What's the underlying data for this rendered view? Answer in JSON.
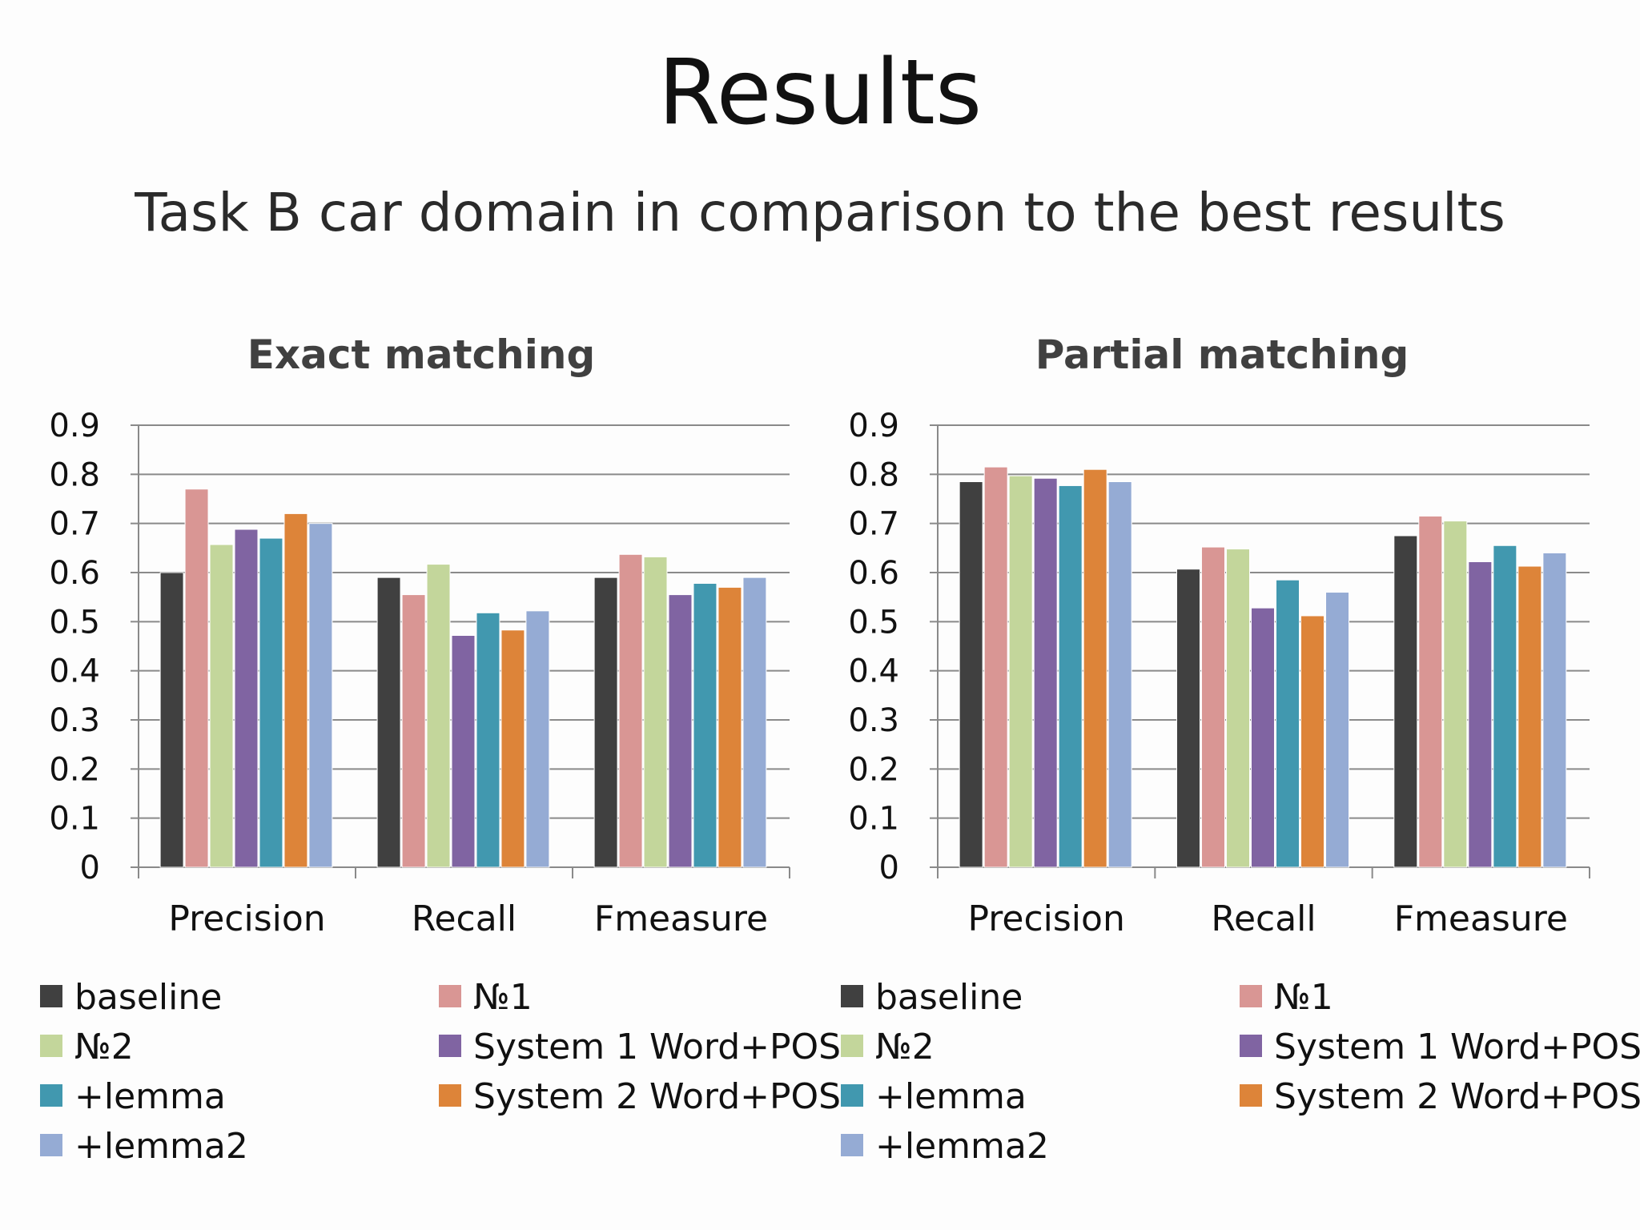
{
  "slide": {
    "title": "Results",
    "subtitle": "Task B car domain in comparison to the best results"
  },
  "chart_data": [
    {
      "type": "bar",
      "title": "Exact matching",
      "categories": [
        "Precision",
        "Recall",
        "Fmeasure"
      ],
      "ylim": [
        0,
        0.9
      ],
      "yticks": [
        "0",
        "0.1",
        "0.2",
        "0.3",
        "0.4",
        "0.5",
        "0.6",
        "0.7",
        "0.8",
        "0.9"
      ],
      "grid": true,
      "legend_position": "bottom",
      "series": [
        {
          "name": "baseline",
          "color": "#404040",
          "values": [
            0.6,
            0.59,
            0.59
          ]
        },
        {
          "name": "№1",
          "color": "#d99694",
          "values": [
            0.77,
            0.555,
            0.637
          ]
        },
        {
          "name": "№2",
          "color": "#c3d69b",
          "values": [
            0.657,
            0.617,
            0.632
          ]
        },
        {
          "name": "System 1 Word+POS",
          "color": "#8064a2",
          "values": [
            0.688,
            0.472,
            0.555
          ]
        },
        {
          "name": "+lemma",
          "color": "#4198af",
          "values": [
            0.67,
            0.518,
            0.578
          ]
        },
        {
          "name": "System 2 Word+POS",
          "color": "#dd8439",
          "values": [
            0.72,
            0.483,
            0.57
          ]
        },
        {
          "name": "+lemma2",
          "color": "#95abd4",
          "values": [
            0.7,
            0.522,
            0.59
          ]
        }
      ]
    },
    {
      "type": "bar",
      "title": "Partial matching",
      "categories": [
        "Precision",
        "Recall",
        "Fmeasure"
      ],
      "ylim": [
        0,
        0.9
      ],
      "yticks": [
        "0",
        "0.1",
        "0.2",
        "0.3",
        "0.4",
        "0.5",
        "0.6",
        "0.7",
        "0.8",
        "0.9"
      ],
      "grid": true,
      "legend_position": "bottom",
      "series": [
        {
          "name": "baseline",
          "color": "#404040",
          "values": [
            0.785,
            0.607,
            0.675
          ]
        },
        {
          "name": "№1",
          "color": "#d99694",
          "values": [
            0.815,
            0.652,
            0.715
          ]
        },
        {
          "name": "№2",
          "color": "#c3d69b",
          "values": [
            0.797,
            0.648,
            0.705
          ]
        },
        {
          "name": "System 1 Word+POS",
          "color": "#8064a2",
          "values": [
            0.792,
            0.528,
            0.622
          ]
        },
        {
          "name": "+lemma",
          "color": "#4198af",
          "values": [
            0.777,
            0.585,
            0.655
          ]
        },
        {
          "name": "System 2 Word+POS",
          "color": "#dd8439",
          "values": [
            0.81,
            0.512,
            0.613
          ]
        },
        {
          "name": "+lemma2",
          "color": "#95abd4",
          "values": [
            0.785,
            0.56,
            0.64
          ]
        }
      ]
    }
  ]
}
